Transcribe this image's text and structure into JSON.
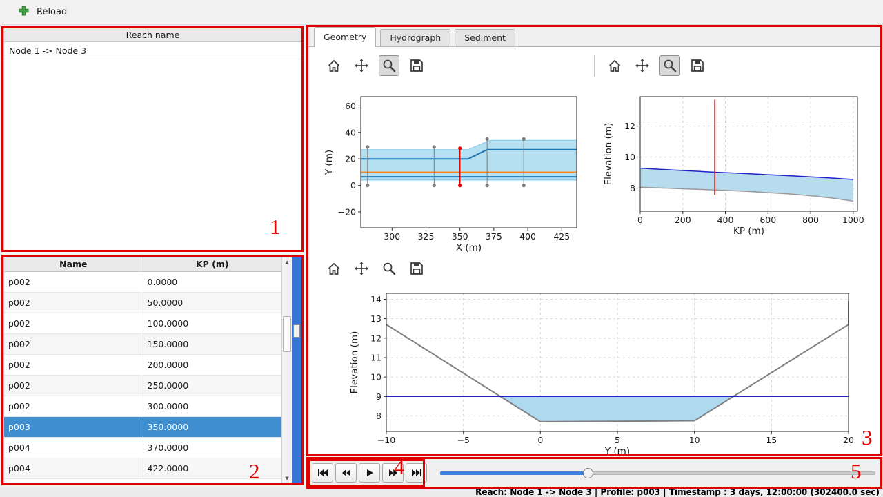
{
  "topbar": {
    "reload_label": "Reload"
  },
  "reach_panel": {
    "header": "Reach name",
    "items": [
      "Node 1 -> Node 3"
    ]
  },
  "profile_table": {
    "columns": [
      "Name",
      "KP (m)"
    ],
    "rows": [
      [
        "p002",
        "0.0000"
      ],
      [
        "p002",
        "50.0000"
      ],
      [
        "p002",
        "100.0000"
      ],
      [
        "p002",
        "150.0000"
      ],
      [
        "p002",
        "200.0000"
      ],
      [
        "p002",
        "250.0000"
      ],
      [
        "p002",
        "300.0000"
      ],
      [
        "p003",
        "350.0000"
      ],
      [
        "p004",
        "370.0000"
      ],
      [
        "p004",
        "422.0000"
      ]
    ],
    "selected_index": 7,
    "selected_color": "#3e8ed0"
  },
  "tabs": [
    {
      "label": "Geometry",
      "active": true
    },
    {
      "label": "Hydrograph",
      "active": false
    },
    {
      "label": "Sediment",
      "active": false
    }
  ],
  "toolbars": [
    {
      "icons": [
        "home-icon",
        "pan-icon",
        "zoom-icon",
        "save-icon"
      ],
      "active_tool": "zoom-icon"
    },
    {
      "icons": [
        "home-icon",
        "pan-icon",
        "zoom-icon",
        "save-icon"
      ],
      "active_tool": "zoom-icon"
    },
    {
      "icons": [
        "home-icon",
        "pan-icon",
        "zoom-icon",
        "save-icon"
      ],
      "active_tool": null
    }
  ],
  "playback": {
    "buttons": [
      "skip-first",
      "step-back",
      "play",
      "step-forward",
      "skip-last"
    ]
  },
  "slider": {
    "value_pct": 34
  },
  "statusbar": {
    "text": "Reach: Node 1 -> Node 3 | Profile: p003 | Timestamp : 3 days, 12:00:00 (302400.0 sec)"
  },
  "annotations": {
    "color": "#e00000",
    "labels": [
      "1",
      "2",
      "3",
      "4",
      "5"
    ]
  },
  "colors": {
    "panel_scrollbar": "#3575d3",
    "slider_fill": "#3f80d8"
  },
  "chart_data": [
    {
      "id": "plan-view",
      "type": "line",
      "xlabel": "X (m)",
      "ylabel": "Y (m)",
      "xlim": [
        277,
        436
      ],
      "ylim": [
        -32,
        67
      ],
      "xticks": [
        300,
        325,
        350,
        375,
        400,
        425
      ],
      "yticks": [
        -20,
        0,
        20,
        40,
        60
      ],
      "grid": false,
      "fills": [
        {
          "name": "channel-extent",
          "color": "#b4e0f2",
          "points": [
            [
              277,
              27
            ],
            [
              356,
              27
            ],
            [
              372,
              34
            ],
            [
              436,
              34
            ],
            [
              436,
              4
            ],
            [
              277,
              4
            ]
          ]
        }
      ],
      "lines": [
        {
          "name": "bank-top-edge",
          "color": "#85cbe9",
          "width": 1.2,
          "x": [
            277,
            356,
            372,
            436
          ],
          "y": [
            27,
            27,
            34,
            34
          ]
        },
        {
          "name": "bank-bottom-edge",
          "color": "#85cbe9",
          "width": 1.2,
          "x": [
            277,
            436
          ],
          "y": [
            4,
            4
          ]
        },
        {
          "name": "left-bank",
          "color": "#2077b4",
          "width": 2,
          "x": [
            277,
            356,
            370,
            436
          ],
          "y": [
            20,
            20,
            27,
            27
          ]
        },
        {
          "name": "right-bank",
          "color": "#2077b4",
          "width": 2,
          "x": [
            277,
            436
          ],
          "y": [
            6.5,
            6.5
          ]
        },
        {
          "name": "thalweg",
          "color": "#ff7f0e",
          "width": 1.5,
          "x": [
            277,
            436
          ],
          "y": [
            10,
            10
          ]
        }
      ],
      "vlines": [
        {
          "name": "profile-marker",
          "x": 282,
          "y0": 0,
          "y1": 29,
          "color": "#7b7b7b",
          "width": 1,
          "dots": true
        },
        {
          "name": "profile-marker",
          "x": 331,
          "y0": 0,
          "y1": 29,
          "color": "#7b7b7b",
          "width": 1,
          "dots": true
        },
        {
          "name": "selected-profile",
          "x": 350,
          "y0": 0,
          "y1": 28,
          "color": "#e00000",
          "width": 1.5,
          "dots": true
        },
        {
          "name": "profile-marker",
          "x": 370,
          "y0": 0,
          "y1": 35,
          "color": "#7b7b7b",
          "width": 1,
          "dots": true
        },
        {
          "name": "profile-marker",
          "x": 397,
          "y0": 0,
          "y1": 35,
          "color": "#7b7b7b",
          "width": 1,
          "dots": true
        }
      ]
    },
    {
      "id": "long-profile",
      "type": "line",
      "xlabel": "KP (m)",
      "ylabel": "Elevation (m)",
      "xlim": [
        0,
        1020
      ],
      "ylim": [
        6.5,
        13.9
      ],
      "xticks": [
        0,
        200,
        400,
        600,
        800,
        1000
      ],
      "yticks": [
        8,
        10,
        12
      ],
      "grid": true,
      "fills": [
        {
          "name": "water-body",
          "color": "#b6dcee",
          "points": [
            [
              0,
              9.28
            ],
            [
              100,
              9.2
            ],
            [
              200,
              9.13
            ],
            [
              300,
              9.06
            ],
            [
              350,
              9.02
            ],
            [
              400,
              8.99
            ],
            [
              500,
              8.93
            ],
            [
              600,
              8.86
            ],
            [
              700,
              8.79
            ],
            [
              800,
              8.72
            ],
            [
              900,
              8.64
            ],
            [
              1000,
              8.55
            ],
            [
              1000,
              7.15
            ],
            [
              900,
              7.35
            ],
            [
              800,
              7.5
            ],
            [
              700,
              7.62
            ],
            [
              600,
              7.7
            ],
            [
              500,
              7.78
            ],
            [
              400,
              7.85
            ],
            [
              350,
              7.87
            ],
            [
              300,
              7.9
            ],
            [
              200,
              7.95
            ],
            [
              100,
              8.0
            ],
            [
              0,
              8.05
            ]
          ]
        }
      ],
      "lines": [
        {
          "name": "water-surface",
          "color": "#2222cc",
          "width": 1.5,
          "x": [
            0,
            100,
            200,
            300,
            350,
            400,
            500,
            600,
            700,
            800,
            900,
            1000
          ],
          "y": [
            9.28,
            9.2,
            9.13,
            9.06,
            9.02,
            8.99,
            8.93,
            8.86,
            8.79,
            8.72,
            8.64,
            8.55
          ]
        },
        {
          "name": "bed-level",
          "color": "#9a9a9a",
          "width": 1.5,
          "x": [
            0,
            100,
            200,
            300,
            350,
            400,
            500,
            600,
            700,
            800,
            900,
            1000
          ],
          "y": [
            8.05,
            8.0,
            7.95,
            7.9,
            7.87,
            7.85,
            7.78,
            7.7,
            7.62,
            7.5,
            7.35,
            7.15
          ]
        }
      ],
      "vlines": [
        {
          "name": "selected-profile",
          "x": 350,
          "y0": 7.55,
          "y1": 13.7,
          "color": "#e00000",
          "width": 1.5,
          "dots": false
        }
      ]
    },
    {
      "id": "cross-section",
      "type": "line",
      "xlabel": "Y (m)",
      "ylabel": "Elevation (m)",
      "xlim": [
        -10,
        20
      ],
      "ylim": [
        7.2,
        14.3
      ],
      "xticks": [
        -10,
        -5,
        0,
        5,
        10,
        15,
        20
      ],
      "yticks": [
        8,
        9,
        10,
        11,
        12,
        13,
        14
      ],
      "grid": true,
      "fills": [
        {
          "name": "water-area",
          "color": "#aed9ef",
          "points": [
            [
              -2.62,
              9
            ],
            [
              12.53,
              9
            ],
            [
              10,
              7.75
            ],
            [
              0,
              7.7
            ]
          ]
        }
      ],
      "lines": [
        {
          "name": "bed-profile",
          "color": "#808080",
          "width": 2,
          "x": [
            -10,
            0,
            10,
            20,
            20
          ],
          "y": [
            12.7,
            7.7,
            7.75,
            12.7,
            13.9
          ]
        },
        {
          "name": "water-level",
          "color": "#2222cc",
          "width": 1.3,
          "x": [
            -10,
            20
          ],
          "y": [
            9,
            9
          ]
        }
      ],
      "vlines": []
    }
  ]
}
